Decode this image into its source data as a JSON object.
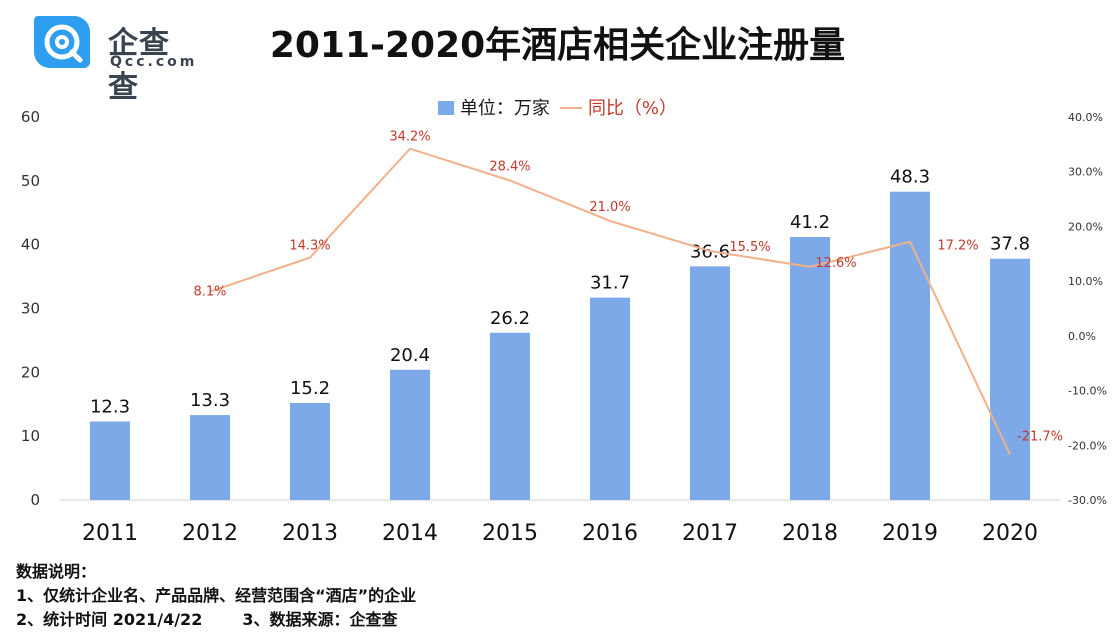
{
  "header": {
    "logo_text": "企查查",
    "logo_sub": "Qcc.com",
    "title": "2011-2020年酒店相关企业注册量"
  },
  "legend": {
    "bar_label": "单位：万家",
    "line_label": "同比（%）"
  },
  "notes": {
    "heading": "数据说明：",
    "line1": "1、仅统计企业名、产品品牌、经营范围含“酒店”的企业",
    "line2a": "2、统计时间 2021/4/22",
    "line2b": "3、数据来源：企查查"
  },
  "colors": {
    "bar": "#7ea9e8",
    "line": "#f2b08a",
    "line_label": "#c0392b"
  },
  "chart_data": {
    "type": "bar",
    "categories": [
      "2011",
      "2012",
      "2013",
      "2014",
      "2015",
      "2016",
      "2017",
      "2018",
      "2019",
      "2020"
    ],
    "series": [
      {
        "name": "单位：万家",
        "type": "bar",
        "axis": "left",
        "values": [
          12.3,
          13.3,
          15.2,
          20.4,
          26.2,
          31.7,
          36.6,
          41.2,
          48.3,
          37.8
        ],
        "labels": [
          "12.3",
          "13.3",
          "15.2",
          "20.4",
          "26.2",
          "31.7",
          "36.6",
          "41.2",
          "48.3",
          "37.8"
        ]
      },
      {
        "name": "同比（%）",
        "type": "line",
        "axis": "right",
        "values": [
          null,
          8.1,
          14.3,
          34.2,
          28.4,
          21.0,
          15.5,
          12.6,
          17.2,
          -21.7
        ],
        "labels": [
          "",
          "8.1%",
          "14.3%",
          "34.2%",
          "28.4%",
          "21.0%",
          "15.5%",
          "12.6%",
          "17.2%",
          "-21.7%"
        ]
      }
    ],
    "y_left": {
      "lim": [
        0,
        60
      ],
      "ticks": [
        "0",
        "10",
        "20",
        "30",
        "40",
        "50",
        "60"
      ]
    },
    "y_right": {
      "lim": [
        -30,
        40
      ],
      "ticks": [
        "-30.0%",
        "-20.0%",
        "-10.0%",
        "0.0%",
        "10.0%",
        "20.0%",
        "30.0%",
        "40.0%"
      ]
    },
    "legend_position": "top-center",
    "grid": false
  }
}
